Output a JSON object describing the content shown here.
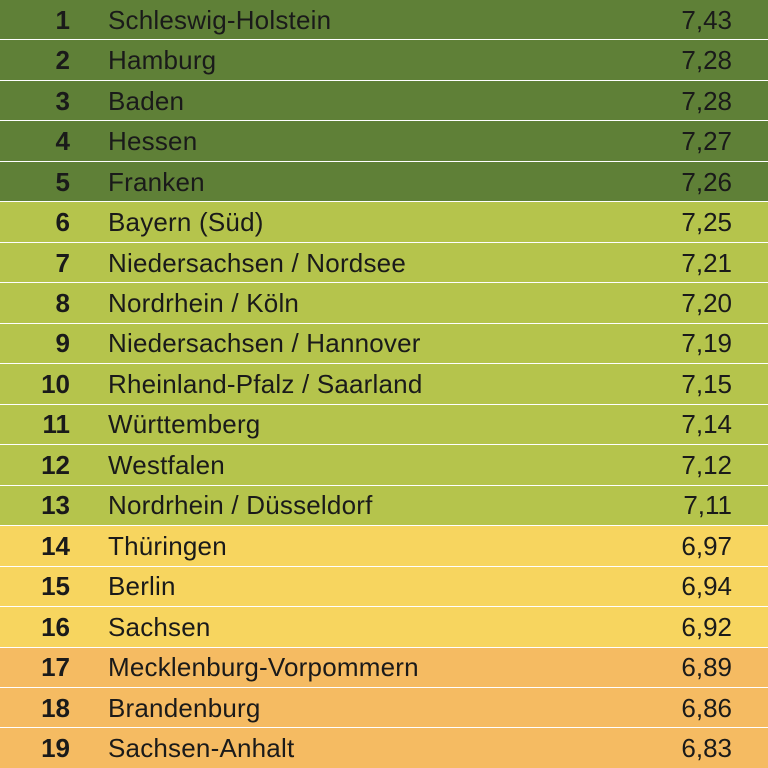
{
  "colors": {
    "tier1": "#5f8037",
    "tier2": "#b5c44c",
    "tier3": "#f7d55f",
    "tier4": "#f5bb62",
    "text": "#1a1a1a",
    "separator": "#ffffff"
  },
  "chart_data": {
    "type": "table",
    "title": "",
    "columns": [
      "",
      "",
      ""
    ],
    "rows": [
      {
        "rank": "1",
        "name": "Schleswig-Holstein",
        "value": "7,43",
        "tier": "tier1"
      },
      {
        "rank": "2",
        "name": "Hamburg",
        "value": "7,28",
        "tier": "tier1"
      },
      {
        "rank": "3",
        "name": "Baden",
        "value": "7,28",
        "tier": "tier1"
      },
      {
        "rank": "4",
        "name": "Hessen",
        "value": "7,27",
        "tier": "tier1"
      },
      {
        "rank": "5",
        "name": "Franken",
        "value": "7,26",
        "tier": "tier1"
      },
      {
        "rank": "6",
        "name": "Bayern (Süd)",
        "value": "7,25",
        "tier": "tier2"
      },
      {
        "rank": "7",
        "name": "Niedersachsen / Nordsee",
        "value": "7,21",
        "tier": "tier2"
      },
      {
        "rank": "8",
        "name": "Nordrhein / Köln",
        "value": "7,20",
        "tier": "tier2"
      },
      {
        "rank": "9",
        "name": "Niedersachsen / Hannover",
        "value": "7,19",
        "tier": "tier2"
      },
      {
        "rank": "10",
        "name": "Rheinland-Pfalz / Saarland",
        "value": "7,15",
        "tier": "tier2"
      },
      {
        "rank": "11",
        "name": "Württemberg",
        "value": "7,14",
        "tier": "tier2"
      },
      {
        "rank": "12",
        "name": "Westfalen",
        "value": "7,12",
        "tier": "tier2"
      },
      {
        "rank": "13",
        "name": "Nordrhein / Düsseldorf",
        "value": "7,11",
        "tier": "tier2"
      },
      {
        "rank": "14",
        "name": "Thüringen",
        "value": "6,97",
        "tier": "tier3"
      },
      {
        "rank": "15",
        "name": "Berlin",
        "value": "6,94",
        "tier": "tier3"
      },
      {
        "rank": "16",
        "name": "Sachsen",
        "value": "6,92",
        "tier": "tier3"
      },
      {
        "rank": "17",
        "name": "Mecklenburg-Vorpommern",
        "value": "6,89",
        "tier": "tier4"
      },
      {
        "rank": "18",
        "name": "Brandenburg",
        "value": "6,86",
        "tier": "tier4"
      },
      {
        "rank": "19",
        "name": "Sachsen-Anhalt",
        "value": "6,83",
        "tier": "tier4"
      }
    ]
  }
}
